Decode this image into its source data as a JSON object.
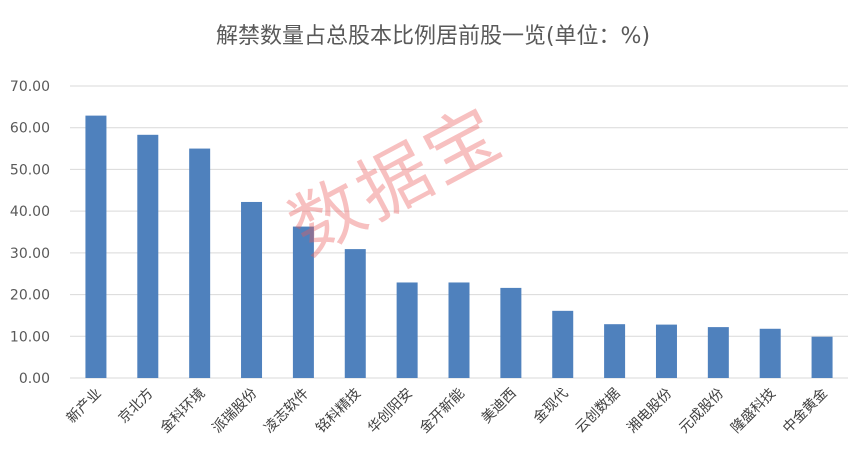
{
  "chart_data": {
    "type": "bar",
    "title": "解禁数量占总股本比例居前股一览(单位：%)",
    "categories": [
      "新产业",
      "京北方",
      "金科环境",
      "派瑞股份",
      "凌志软件",
      "铭科精技",
      "华创阳安",
      "金开新能",
      "美迪西",
      "金现代",
      "云创数据",
      "湘电股份",
      "元成股份",
      "隆盛科技",
      "中金黄金"
    ],
    "values": [
      62.9,
      58.3,
      55.0,
      42.2,
      36.3,
      30.9,
      22.9,
      22.9,
      21.6,
      16.1,
      12.9,
      12.8,
      12.2,
      11.8,
      9.9
    ],
    "ylim": [
      0,
      70
    ],
    "yticks": [
      "0.00",
      "10.00",
      "20.00",
      "30.00",
      "40.00",
      "50.00",
      "60.00",
      "70.00"
    ],
    "grid": true,
    "bar_color": "#4f81bd"
  },
  "watermark": "数据宝"
}
